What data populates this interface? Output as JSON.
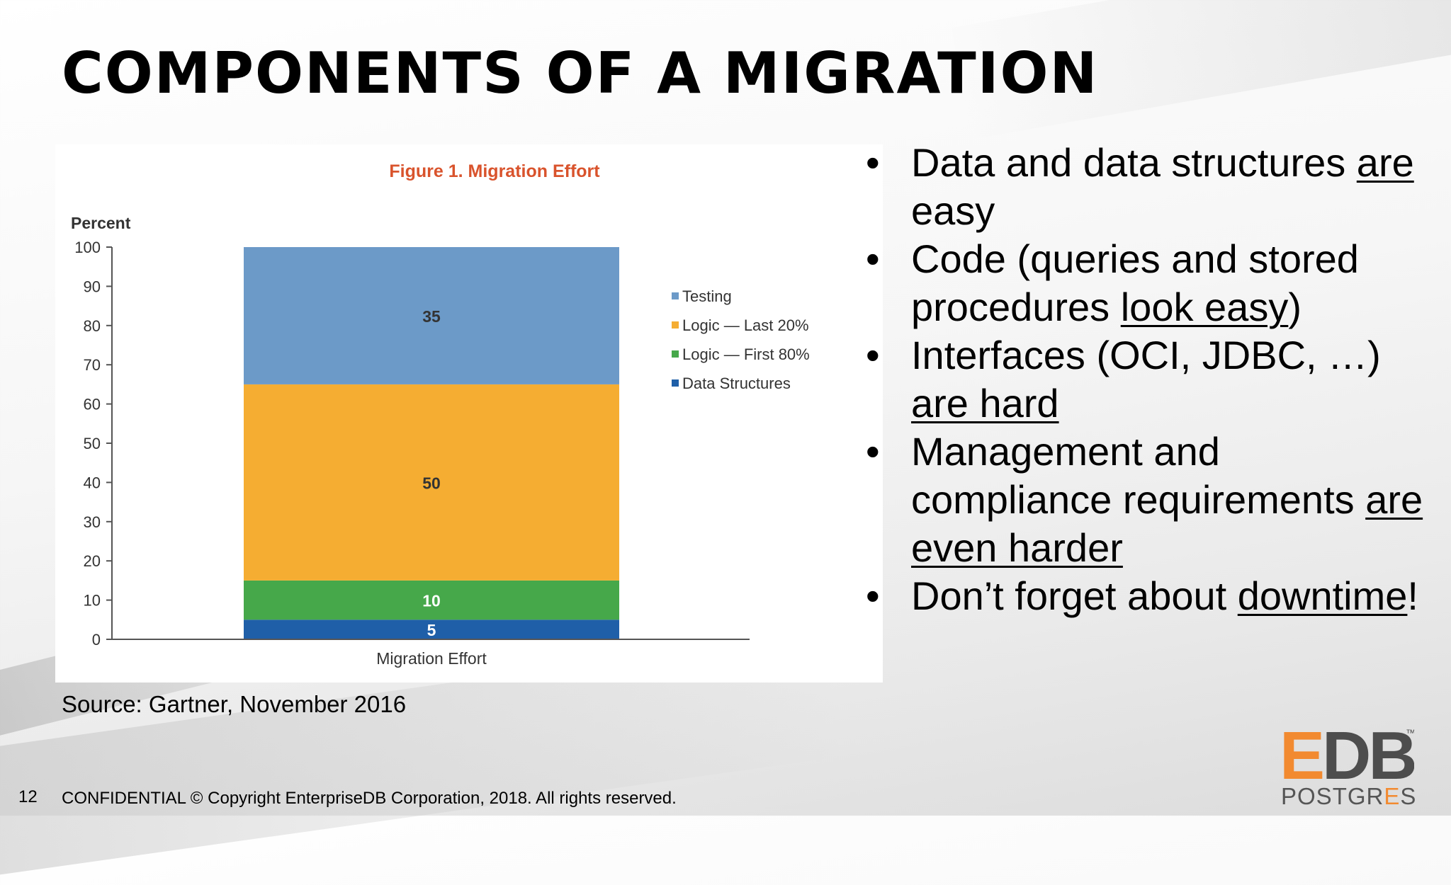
{
  "slide": {
    "title": "COMPONENTS OF A MIGRATION",
    "page_number": "12",
    "footer": "CONFIDENTIAL © Copyright EnterpriseDB Corporation, 2018. All rights reserved.",
    "source": "Source: Gartner, November 2016"
  },
  "bullets": [
    {
      "bullet": "•",
      "before": "Data and data structures ",
      "underlined": "are",
      "after": " easy"
    },
    {
      "bullet": "•",
      "before": "Code (queries and stored procedures ",
      "underlined": "look easy",
      "after": ")"
    },
    {
      "bullet": "•",
      "before": "Interfaces (OCI, JDBC, …) ",
      "underlined": "are hard",
      "after": ""
    },
    {
      "bullet": "•",
      "before": "Management and compliance requirements ",
      "underlined": "are even harder",
      "after": ""
    },
    {
      "bullet": "•",
      "before": "Don’t forget about ",
      "underlined": "downtime",
      "after": "!"
    }
  ],
  "logo": {
    "mark": "EDB",
    "trademark": "™",
    "word_start": "POSTGR",
    "word_accent": "E",
    "word_end": "S",
    "colors": {
      "mark_orange": "#f28a30",
      "mark_grey": "#4d4d4d",
      "word": "#555555"
    }
  },
  "chart_data": {
    "type": "bar",
    "stacked": true,
    "title": "Figure 1. Migration Effort",
    "ylabel": "Percent",
    "xlabel": "",
    "ylim": [
      0,
      100
    ],
    "yticks": [
      0,
      10,
      20,
      30,
      40,
      50,
      60,
      70,
      80,
      90,
      100
    ],
    "categories": [
      "Migration Effort"
    ],
    "series": [
      {
        "name": "Data Structures",
        "values": [
          5
        ],
        "color": "#1f5fa8",
        "label_color": "#ffffff"
      },
      {
        "name": "Logic — First 80%",
        "values": [
          10
        ],
        "color": "#46a84a",
        "label_color": "#ffffff"
      },
      {
        "name": "Logic — Last 20%",
        "values": [
          50
        ],
        "color": "#f5ad32",
        "label_color": "#333333"
      },
      {
        "name": "Testing",
        "values": [
          35
        ],
        "color": "#6c9ac8",
        "label_color": "#333333"
      }
    ],
    "legend_position": "right",
    "legend_order": [
      "Testing",
      "Logic — Last 20%",
      "Logic — First 80%",
      "Data Structures"
    ],
    "data_labels": true,
    "grid": false,
    "colors": {
      "title": "#d9532c",
      "axis": "#555555",
      "text": "#333333"
    }
  }
}
